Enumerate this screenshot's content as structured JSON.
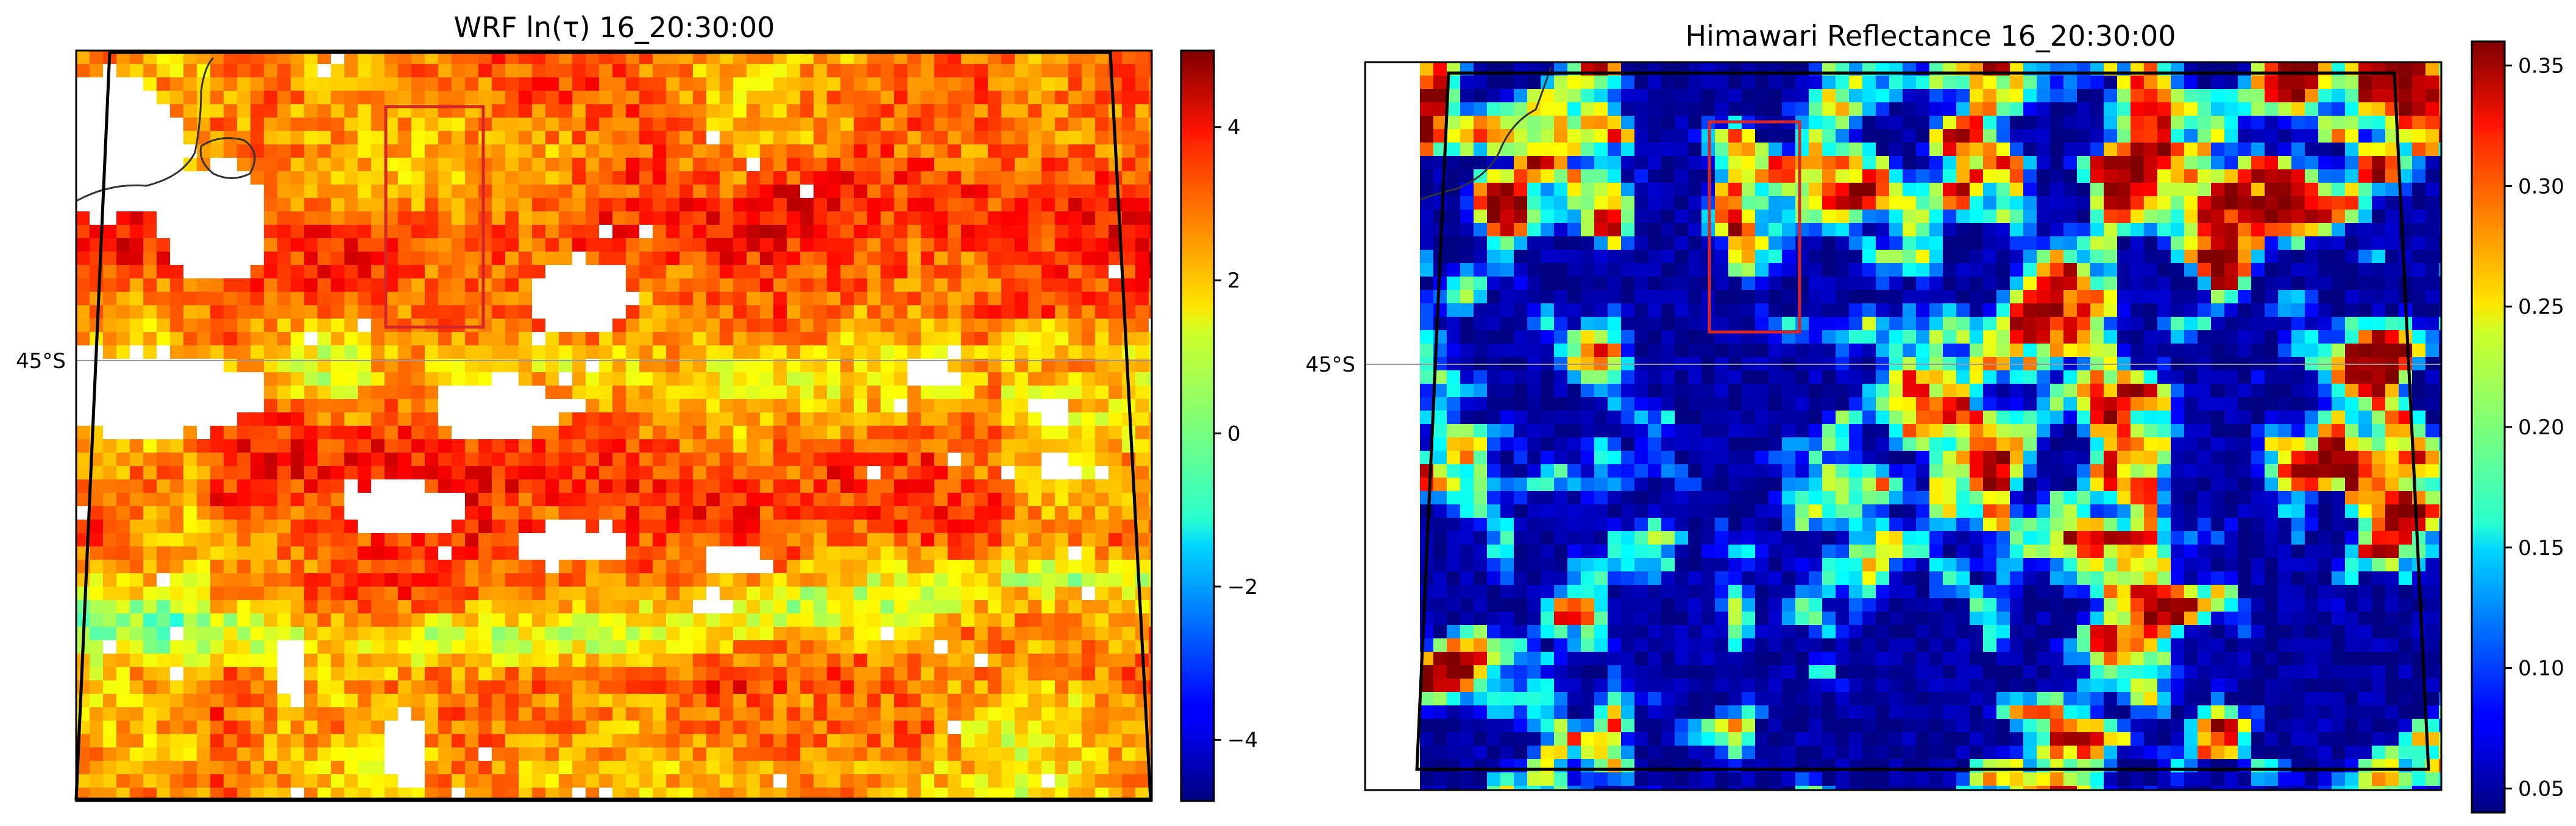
{
  "chart_data": [
    {
      "type": "heatmap",
      "title": "WRF ln(τ) 16_20:30:00",
      "colormap": "jet",
      "colorbar": {
        "range": [
          -4.8,
          5.0
        ],
        "ticks": [
          -4,
          -2,
          0,
          2,
          4
        ],
        "tick_labels": [
          "−4",
          "−2",
          "0",
          "2",
          "4"
        ]
      },
      "latitude_labels": [
        "45°S"
      ],
      "field_description": {
        "background_value": 3.0,
        "high_value_regions": [
          "top-left band",
          "upper-middle band",
          "central band",
          "lower-middle band"
        ],
        "clear_sky_patches": 14
      },
      "grid": false,
      "highlight_box_color": "#d62728"
    },
    {
      "type": "heatmap",
      "title": "Himawari Reflectance 16_20:30:00",
      "colormap": "jet",
      "colorbar": {
        "range": [
          0.04,
          0.36
        ],
        "ticks": [
          0.05,
          0.1,
          0.15,
          0.2,
          0.25,
          0.3,
          0.35
        ],
        "tick_labels": [
          "0.05",
          "0.10",
          "0.15",
          "0.20",
          "0.25",
          "0.30",
          "0.35"
        ]
      },
      "latitude_labels": [
        "45°S"
      ],
      "field_description": {
        "background_value": 0.05,
        "cloud_cells_max_value": 0.34
      },
      "grid": false,
      "highlight_box_color": "#d62728"
    }
  ]
}
